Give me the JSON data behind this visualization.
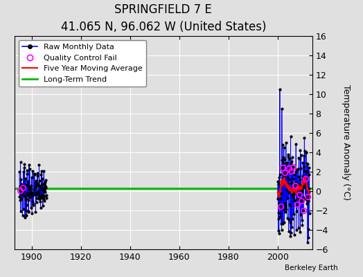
{
  "title": "SPRINGFIELD 7 E",
  "subtitle": "41.065 N, 96.062 W (United States)",
  "ylabel": "Temperature Anomaly (°C)",
  "xlabel_note": "Berkeley Earth",
  "ylim": [
    -6,
    16
  ],
  "yticks": [
    -6,
    -4,
    -2,
    0,
    2,
    4,
    6,
    8,
    10,
    12,
    14,
    16
  ],
  "xlim": [
    1893,
    2014
  ],
  "xticks": [
    1900,
    1920,
    1940,
    1960,
    1980,
    2000
  ],
  "raw_line_color": "#0000ff",
  "raw_marker_color": "#000000",
  "qc_fail_color": "#ff00ff",
  "moving_avg_color": "#ff0000",
  "trend_color": "#00bb00",
  "bg_color": "#e0e0e0",
  "trend_value": 0.3,
  "title_fontsize": 12,
  "subtitle_fontsize": 9,
  "tick_fontsize": 9,
  "legend_fontsize": 8
}
